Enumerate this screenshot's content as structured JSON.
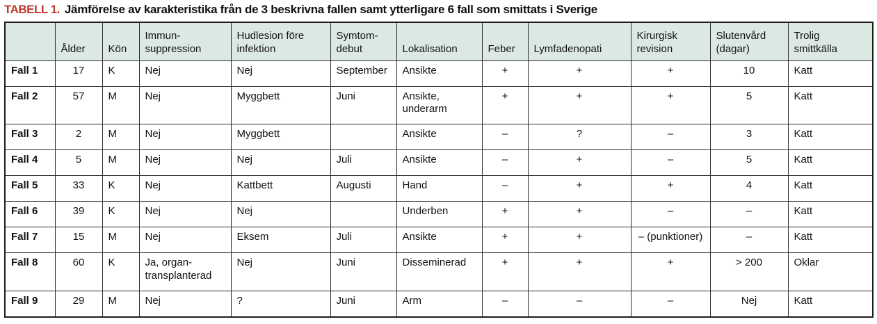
{
  "title": {
    "tag": "TABELL 1.",
    "text": "Jämförelse av karakteristika från de 3 beskrivna fallen samt ytterligare 6 fall som smittats i Sverige"
  },
  "colors": {
    "accent_red": "#bf3a2b",
    "header_bg": "#dce9e3",
    "border_dark": "#1d1d1d",
    "text": "#111111"
  },
  "table": {
    "columns": [
      "",
      "Ålder",
      "Kön",
      "Immun-\nsuppression",
      "Hudlesion före\ninfektion",
      "Symtom-\ndebut",
      "Lokalisation",
      "Feber",
      "Lymfadenopati",
      "Kirurgisk\nrevision",
      "Slutenvård\n(dagar)",
      "Trolig\nsmittkälla"
    ],
    "rows": [
      {
        "case": "Fall 1",
        "cells": [
          "17",
          "K",
          "Nej",
          "Nej",
          "September",
          "Ansikte",
          "+",
          "+",
          "+",
          "10",
          "Katt"
        ]
      },
      {
        "case": "Fall 2",
        "cells": [
          "57",
          "M",
          "Nej",
          "Myggbett",
          "Juni",
          "Ansikte,\nunderarm",
          "+",
          "+",
          "+",
          "5",
          "Katt"
        ]
      },
      {
        "case": "Fall 3",
        "cells": [
          "2",
          "M",
          "Nej",
          "Myggbett",
          "",
          "Ansikte",
          "–",
          "?",
          "–",
          "3",
          "Katt"
        ]
      },
      {
        "case": "Fall 4",
        "cells": [
          "5",
          "M",
          "Nej",
          "Nej",
          "Juli",
          "Ansikte",
          "–",
          "+",
          "–",
          "5",
          "Katt"
        ]
      },
      {
        "case": "Fall 5",
        "cells": [
          "33",
          "K",
          "Nej",
          "Kattbett",
          "Augusti",
          "Hand",
          "–",
          "+",
          "+",
          "4",
          "Katt"
        ]
      },
      {
        "case": "Fall 6",
        "cells": [
          "39",
          "K",
          "Nej",
          "Nej",
          "",
          "Underben",
          "+",
          "+",
          "–",
          "–",
          "Katt"
        ]
      },
      {
        "case": "Fall 7",
        "cells": [
          "15",
          "M",
          "Nej",
          "Eksem",
          "Juli",
          "Ansikte",
          "+",
          "+",
          "– (punktioner)",
          "–",
          "Katt"
        ]
      },
      {
        "case": "Fall 8",
        "cells": [
          "60",
          "K",
          "Ja, organ-\ntransplanterad",
          "Nej",
          "Juni",
          "Disseminerad",
          "+",
          "+",
          "+",
          "> 200",
          "Oklar"
        ]
      },
      {
        "case": "Fall 9",
        "cells": [
          "29",
          "M",
          "Nej",
          "?",
          "Juni",
          "Arm",
          "–",
          "–",
          "–",
          "Nej",
          "Katt"
        ]
      }
    ]
  }
}
